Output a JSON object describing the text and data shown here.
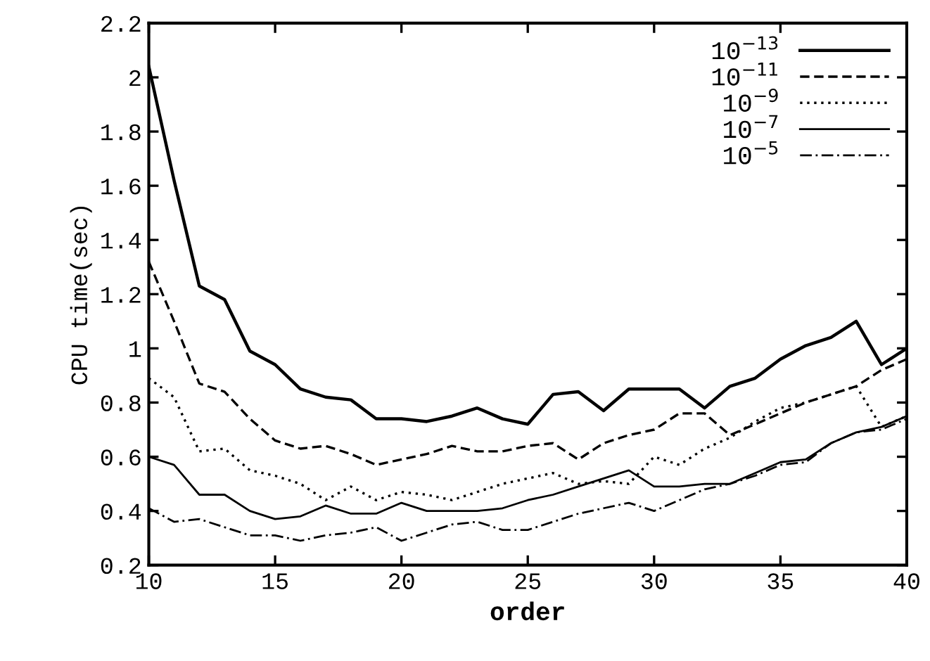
{
  "chart_data": {
    "type": "line",
    "xlabel": "order",
    "ylabel": "CPU time(sec)",
    "x": [
      10,
      11,
      12,
      13,
      14,
      15,
      16,
      17,
      18,
      19,
      20,
      21,
      22,
      23,
      24,
      25,
      26,
      27,
      28,
      29,
      30,
      31,
      32,
      33,
      34,
      35,
      36,
      37,
      38,
      39,
      40
    ],
    "xlim": [
      10,
      40
    ],
    "xticks": [
      10,
      15,
      20,
      25,
      30,
      35,
      40
    ],
    "ylim": [
      0.2,
      2.2
    ],
    "yticks": [
      0.2,
      0.4,
      0.6,
      0.8,
      1,
      1.2,
      1.4,
      1.6,
      1.8,
      2,
      2.2
    ],
    "grid": false,
    "legend": "top right",
    "marker": "none",
    "series": [
      {
        "name": "10$^{−13}$",
        "color": "#000000",
        "line_style": "solid",
        "values": [
          2.04,
          1.62,
          1.23,
          1.18,
          0.99,
          0.94,
          0.85,
          0.82,
          0.81,
          0.74,
          0.74,
          0.73,
          0.75,
          0.78,
          0.74,
          0.72,
          0.83,
          0.84,
          0.77,
          0.85,
          0.85,
          0.85,
          0.78,
          0.86,
          0.89,
          0.96,
          1.01,
          1.04,
          1.1,
          0.94,
          1.0
        ]
      },
      {
        "name": "10$^{−11}$",
        "color": "#000000",
        "line_style": "dashed",
        "values": [
          1.32,
          1.1,
          0.87,
          0.84,
          0.74,
          0.66,
          0.63,
          0.64,
          0.61,
          0.57,
          0.59,
          0.61,
          0.64,
          0.62,
          0.62,
          0.64,
          0.65,
          0.59,
          0.65,
          0.68,
          0.7,
          0.76,
          0.76,
          0.68,
          0.72,
          0.76,
          0.8,
          0.83,
          0.86,
          0.92,
          0.96
        ]
      },
      {
        "name": "10$^{−9}$",
        "color": "#000000",
        "line_style": "dotted",
        "values": [
          0.89,
          0.82,
          0.62,
          0.63,
          0.55,
          0.53,
          0.5,
          0.44,
          0.49,
          0.44,
          0.47,
          0.46,
          0.44,
          0.47,
          0.5,
          0.52,
          0.54,
          0.5,
          0.51,
          0.5,
          0.6,
          0.57,
          0.63,
          0.67,
          0.73,
          0.78,
          0.8,
          0.83,
          0.86,
          0.71,
          0.75
        ]
      },
      {
        "name": "10$^{−7}$",
        "color": "#000000",
        "line_style": "solid",
        "values": [
          0.6,
          0.57,
          0.46,
          0.46,
          0.4,
          0.37,
          0.38,
          0.42,
          0.39,
          0.39,
          0.43,
          0.4,
          0.4,
          0.4,
          0.41,
          0.44,
          0.46,
          0.49,
          0.52,
          0.55,
          0.49,
          0.49,
          0.5,
          0.5,
          0.54,
          0.58,
          0.59,
          0.65,
          0.69,
          0.71,
          0.75
        ]
      },
      {
        "name": "10$^{−5}$",
        "color": "#000000",
        "line_style": "dashdot",
        "values": [
          0.41,
          0.36,
          0.37,
          0.34,
          0.31,
          0.31,
          0.29,
          0.31,
          0.32,
          0.34,
          0.29,
          0.32,
          0.35,
          0.36,
          0.33,
          0.33,
          0.36,
          0.39,
          0.41,
          0.43,
          0.4,
          0.44,
          0.48,
          0.5,
          0.53,
          0.57,
          0.58,
          0.65,
          0.69,
          0.7,
          0.74
        ]
      }
    ]
  }
}
